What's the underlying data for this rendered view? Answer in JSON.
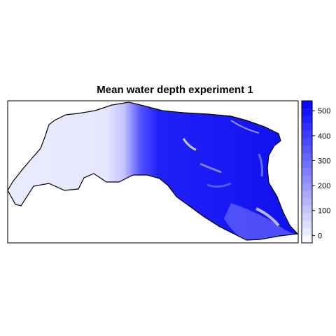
{
  "chart_data": {
    "type": "heatmap",
    "title": "Mean water depth experiment 1",
    "variable": "mean water depth",
    "colorbar": {
      "position": "right",
      "range": [
        -30,
        540
      ],
      "ticks": [
        0,
        100,
        200,
        300,
        400,
        500
      ],
      "bin_width": 30,
      "color_low": "#ffffff",
      "color_high": "#0000ff"
    },
    "grid": false,
    "legend_placement": "right",
    "map_shading": "depth increases from near 0 in the west to ~500 in the east"
  }
}
